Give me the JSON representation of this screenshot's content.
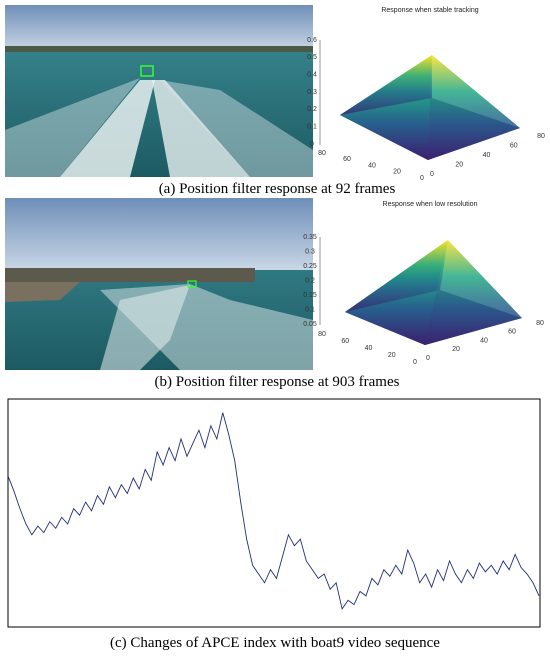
{
  "panels": [
    {
      "title": "Response when stable tracking",
      "caption": "(a) Position filter response at 92 frames",
      "zticks": [
        0.6,
        0.5,
        0.4,
        0.3,
        0.2,
        0.1,
        0
      ],
      "xticks": [
        80,
        60,
        40,
        20,
        0
      ],
      "yticks": [
        0,
        20,
        40,
        60,
        80
      ]
    },
    {
      "title": "Response when low resolution",
      "caption": "(b) Position filter response at 903 frames",
      "zticks": [
        0.35,
        0.3,
        0.25,
        0.2,
        0.15,
        0.1,
        0.05
      ],
      "xticks": [
        80,
        60,
        40,
        20,
        0
      ],
      "yticks": [
        0,
        20,
        40,
        60,
        80
      ]
    }
  ],
  "chart_data": {
    "type": "line",
    "caption": "(c) Changes of APCE index with boat9 video sequence",
    "color": "#1f2f7a",
    "ylim": [
      0,
      100
    ],
    "values": [
      67,
      60,
      52,
      45,
      40,
      44,
      41,
      46,
      43,
      48,
      45,
      52,
      49,
      55,
      51,
      58,
      54,
      62,
      57,
      63,
      59,
      66,
      61,
      70,
      65,
      78,
      72,
      80,
      74,
      84,
      76,
      82,
      88,
      80,
      90,
      84,
      96,
      86,
      74,
      55,
      38,
      26,
      22,
      18,
      24,
      20,
      30,
      40,
      35,
      38,
      28,
      24,
      20,
      22,
      15,
      18,
      6,
      10,
      8,
      14,
      12,
      20,
      17,
      24,
      21,
      26,
      22,
      33,
      27,
      18,
      22,
      16,
      24,
      19,
      28,
      22,
      18,
      24,
      20,
      27,
      23,
      26,
      22,
      28,
      24,
      31,
      25,
      22,
      18,
      12
    ]
  }
}
